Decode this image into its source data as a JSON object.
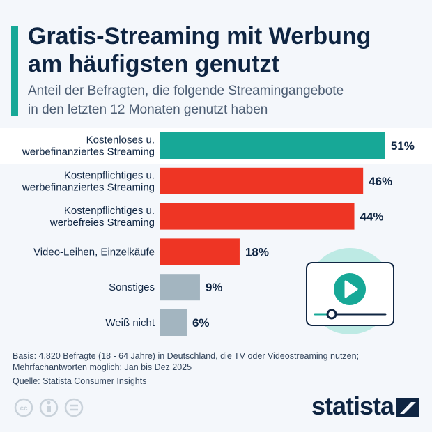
{
  "header": {
    "title_line1": "Gratis-Streaming mit Werbung",
    "title_line2": "am häufigsten genutzt",
    "subtitle_line1": "Anteil der Befragten, die folgende Streamingangebote",
    "subtitle_line2": "in den letzten 12 Monaten genutzt haben"
  },
  "chart_data": {
    "type": "bar",
    "orientation": "horizontal",
    "categories": [
      [
        "Kostenloses u.",
        "werbefinanziertes Streaming"
      ],
      [
        "Kostenpflichtiges u.",
        "werbefinanziertes Streaming"
      ],
      [
        "Kostenpflichtiges u.",
        "werbefreies Streaming"
      ],
      [
        "Video-Leihen, Einzelkäufe"
      ],
      [
        "Sonstiges"
      ],
      [
        "Weiß nicht"
      ]
    ],
    "values": [
      51,
      46,
      44,
      18,
      9,
      6
    ],
    "value_labels": [
      "51%",
      "46%",
      "44%",
      "18%",
      "9%",
      "6%"
    ],
    "colors": [
      "#17a897",
      "#ee3524",
      "#ee3524",
      "#ee3524",
      "#a3b5c0",
      "#a3b5c0"
    ],
    "highlighted_index": 0,
    "xlim": [
      0,
      100
    ]
  },
  "footer": {
    "basis_line1": "Basis: 4.820 Befragte (18 - 64 Jahre) in Deutschland, die TV oder Videostreaming nutzen;",
    "basis_line2": "Mehrfachantworten möglich; Jan bis Dez 2025",
    "source": "Quelle: Statista Consumer Insights",
    "logo": "statista"
  },
  "colors": {
    "accent": "#17a897",
    "title": "#0f2542",
    "background": "#f4f7fb"
  },
  "icons": [
    "video-player-icon",
    "cc-icon",
    "by-icon",
    "nd-icon",
    "statista-logo-icon"
  ]
}
